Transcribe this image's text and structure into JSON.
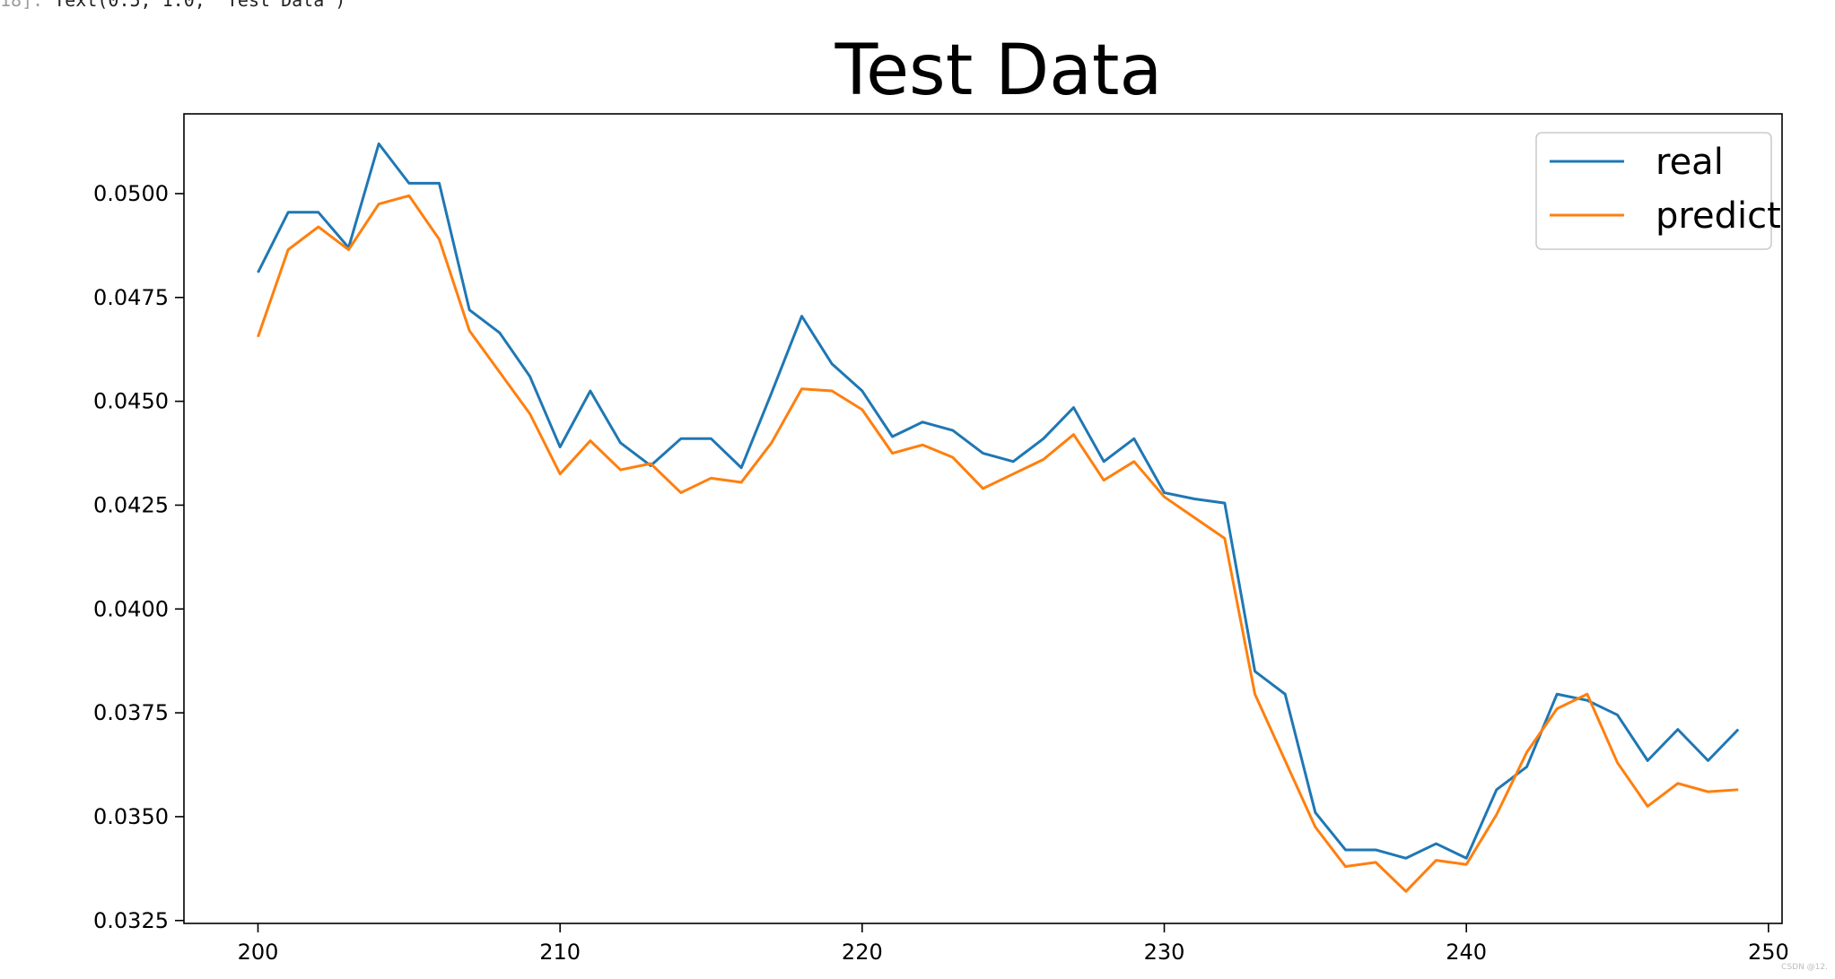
{
  "cell": {
    "prompt": "18]:",
    "output": "Text(0.5, 1.0, 'Test Data')"
  },
  "watermark": "CSDN @12.",
  "colors": {
    "real": "#1f77b4",
    "predict": "#ff7f0e",
    "axes": "#000000"
  },
  "chart_data": {
    "type": "line",
    "title": "Test Data",
    "xlabel": "",
    "ylabel": "",
    "xlim": [
      197.55,
      250.45
    ],
    "ylim": [
      0.03243,
      0.05192
    ],
    "xticks": [
      200,
      210,
      220,
      230,
      240,
      250
    ],
    "xtick_labels": [
      "200",
      "210",
      "220",
      "230",
      "240",
      "250"
    ],
    "yticks": [
      0.0325,
      0.035,
      0.0375,
      0.04,
      0.0425,
      0.045,
      0.0475,
      0.05
    ],
    "ytick_labels": [
      "0.0325",
      "0.0350",
      "0.0375",
      "0.0400",
      "0.0425",
      "0.0450",
      "0.0475",
      "0.0500"
    ],
    "legend_position": "top-right",
    "grid": false,
    "x": [
      200,
      201,
      202,
      203,
      204,
      205,
      206,
      207,
      208,
      209,
      210,
      211,
      212,
      213,
      214,
      215,
      216,
      217,
      218,
      219,
      220,
      221,
      222,
      223,
      224,
      225,
      226,
      227,
      228,
      229,
      230,
      231,
      232,
      233,
      234,
      235,
      236,
      237,
      238,
      239,
      240,
      241,
      242,
      243,
      244,
      245,
      246,
      247,
      248,
      249
    ],
    "series": [
      {
        "name": "real",
        "values": [
          0.0481,
          0.04955,
          0.04955,
          0.0487,
          0.0512,
          0.05025,
          0.05025,
          0.0472,
          0.04665,
          0.0456,
          0.0439,
          0.04525,
          0.044,
          0.04345,
          0.0441,
          0.0441,
          0.0434,
          0.0452,
          0.04705,
          0.0459,
          0.04525,
          0.04415,
          0.0445,
          0.0443,
          0.04375,
          0.04355,
          0.0441,
          0.04485,
          0.04355,
          0.0441,
          0.0428,
          0.04265,
          0.04255,
          0.0385,
          0.03795,
          0.0351,
          0.0342,
          0.0342,
          0.034,
          0.03435,
          0.034,
          0.03565,
          0.0362,
          0.03795,
          0.0378,
          0.03745,
          0.03635,
          0.0371,
          0.03635,
          0.0371
        ]
      },
      {
        "name": "predict",
        "values": [
          0.04655,
          0.04865,
          0.0492,
          0.04865,
          0.04975,
          0.04995,
          0.0489,
          0.0467,
          0.0457,
          0.0447,
          0.04325,
          0.04405,
          0.04335,
          0.0435,
          0.0428,
          0.04315,
          0.04305,
          0.044,
          0.0453,
          0.04525,
          0.0448,
          0.04375,
          0.04395,
          0.04365,
          0.0429,
          0.04325,
          0.0436,
          0.0442,
          0.0431,
          0.04355,
          0.0427,
          0.0422,
          0.0417,
          0.03795,
          0.03635,
          0.03475,
          0.0338,
          0.0339,
          0.0332,
          0.03395,
          0.03385,
          0.03505,
          0.03655,
          0.0376,
          0.03795,
          0.0363,
          0.03525,
          0.0358,
          0.0356,
          0.03565
        ]
      }
    ]
  }
}
